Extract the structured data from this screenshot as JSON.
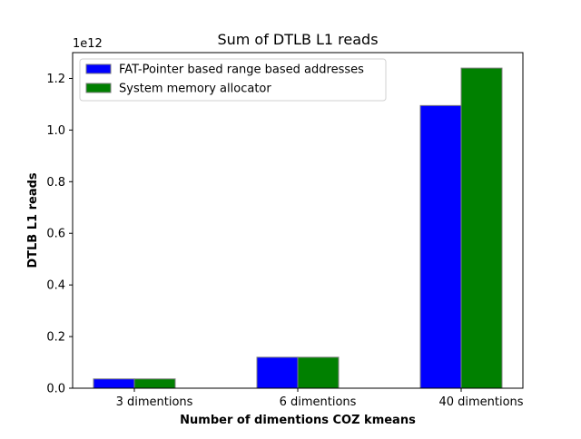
{
  "chart_data": {
    "type": "bar",
    "title": "Sum of DTLB L1 reads",
    "xlabel": "Number of dimentions COZ kmeans",
    "ylabel": "DTLB L1 reads",
    "offset_text": "1e12",
    "categories": [
      "3 dimentions",
      "6 dimentions",
      "40 dimentions"
    ],
    "series": [
      {
        "name": "FAT-Pointer based range based addresses",
        "color": "#0000ff",
        "values": [
          0.036,
          0.12,
          1.095
        ]
      },
      {
        "name": "System memory allocator",
        "color": "#008000",
        "values": [
          0.036,
          0.12,
          1.24
        ]
      }
    ],
    "ylim": [
      0,
      1.3
    ],
    "yticks": [
      0.0,
      0.2,
      0.4,
      0.6,
      0.8,
      1.0,
      1.2
    ],
    "ytick_labels": [
      "0.0",
      "0.2",
      "0.4",
      "0.6",
      "0.8",
      "1.0",
      "1.2"
    ],
    "legend_position": "top-left",
    "grid": false,
    "bar_edge_color": "#808080"
  }
}
